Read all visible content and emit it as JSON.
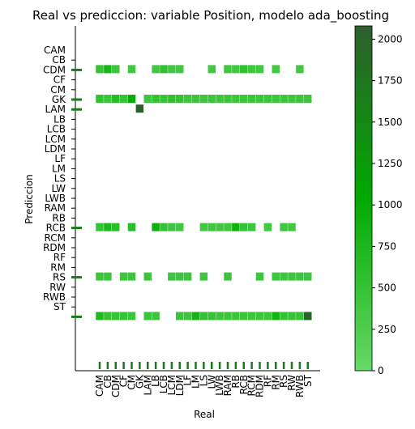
{
  "chart_data": {
    "type": "heatmap",
    "title": "Real vs prediccion: variable Position, modelo ada_boosting",
    "xlabel": "Real",
    "ylabel": "Prediccion",
    "x_categories": [
      "CAM",
      "CB",
      "CDM",
      "CF",
      "CM",
      "GK",
      "LAM",
      "LB",
      "LCB",
      "LCM",
      "LDM",
      "LF",
      "LM",
      "LS",
      "LW",
      "LWB",
      "RAM",
      "RB",
      "RCB",
      "RCM",
      "RDM",
      "RF",
      "RM",
      "RS",
      "RW",
      "RWB",
      "ST"
    ],
    "y_categories": [
      "CAM",
      "CB",
      "CDM",
      "CF",
      "CM",
      "GK",
      "LAM",
      "LB",
      "LCB",
      "LCM",
      "LDM",
      "LF",
      "LM",
      "LS",
      "LW",
      "LWB",
      "RAM",
      "RB",
      "RCB",
      "RCM",
      "RDM",
      "RF",
      "RM",
      "RS",
      "RW",
      "RWB",
      "ST"
    ],
    "highlighted_ticks_y": [
      "CB",
      "CM",
      "GK",
      "RB",
      "RM",
      "ST"
    ],
    "colorbar": {
      "min": 0,
      "max": 2080,
      "ticks": [
        0,
        250,
        500,
        750,
        1000,
        1250,
        1500,
        1750,
        2000
      ],
      "colors": [
        "#66d966",
        "#00aa00",
        "#2e5e2e"
      ],
      "stops": [
        0,
        0.5,
        1
      ]
    },
    "cells": [
      {
        "y": "CB",
        "x": "CAM",
        "v": 500
      },
      {
        "y": "CB",
        "x": "CB",
        "v": 800
      },
      {
        "y": "CB",
        "x": "CDM",
        "v": 420
      },
      {
        "y": "CB",
        "x": "CM",
        "v": 380
      },
      {
        "y": "CB",
        "x": "LB",
        "v": 380
      },
      {
        "y": "CB",
        "x": "LCB",
        "v": 550
      },
      {
        "y": "CB",
        "x": "LCM",
        "v": 400
      },
      {
        "y": "CB",
        "x": "LDM",
        "v": 380
      },
      {
        "y": "CB",
        "x": "LW",
        "v": 380
      },
      {
        "y": "CB",
        "x": "RAM",
        "v": 380
      },
      {
        "y": "CB",
        "x": "RB",
        "v": 380
      },
      {
        "y": "CB",
        "x": "RCB",
        "v": 550
      },
      {
        "y": "CB",
        "x": "RCM",
        "v": 400
      },
      {
        "y": "CB",
        "x": "RDM",
        "v": 380
      },
      {
        "y": "CB",
        "x": "RM",
        "v": 380
      },
      {
        "y": "CB",
        "x": "RWB",
        "v": 380
      },
      {
        "y": "CM",
        "x": "CAM",
        "v": 520
      },
      {
        "y": "CM",
        "x": "CB",
        "v": 450
      },
      {
        "y": "CM",
        "x": "CDM",
        "v": 650
      },
      {
        "y": "CM",
        "x": "CF",
        "v": 480
      },
      {
        "y": "CM",
        "x": "CM",
        "v": 1000
      },
      {
        "y": "CM",
        "x": "LAM",
        "v": 420
      },
      {
        "y": "CM",
        "x": "LB",
        "v": 520
      },
      {
        "y": "CM",
        "x": "LCB",
        "v": 480
      },
      {
        "y": "CM",
        "x": "LCM",
        "v": 560
      },
      {
        "y": "CM",
        "x": "LDM",
        "v": 520
      },
      {
        "y": "CM",
        "x": "LF",
        "v": 420
      },
      {
        "y": "CM",
        "x": "LM",
        "v": 420
      },
      {
        "y": "CM",
        "x": "LS",
        "v": 420
      },
      {
        "y": "CM",
        "x": "LW",
        "v": 420
      },
      {
        "y": "CM",
        "x": "LWB",
        "v": 420
      },
      {
        "y": "CM",
        "x": "RAM",
        "v": 420
      },
      {
        "y": "CM",
        "x": "RB",
        "v": 450
      },
      {
        "y": "CM",
        "x": "RCB",
        "v": 450
      },
      {
        "y": "CM",
        "x": "RCM",
        "v": 450
      },
      {
        "y": "CM",
        "x": "RDM",
        "v": 420
      },
      {
        "y": "CM",
        "x": "RF",
        "v": 420
      },
      {
        "y": "CM",
        "x": "RM",
        "v": 420
      },
      {
        "y": "CM",
        "x": "RS",
        "v": 420
      },
      {
        "y": "CM",
        "x": "RW",
        "v": 420
      },
      {
        "y": "CM",
        "x": "RWB",
        "v": 420
      },
      {
        "y": "CM",
        "x": "ST",
        "v": 420
      },
      {
        "y": "GK",
        "x": "GK",
        "v": 2080
      },
      {
        "y": "RB",
        "x": "CAM",
        "v": 500
      },
      {
        "y": "RB",
        "x": "CB",
        "v": 750
      },
      {
        "y": "RB",
        "x": "CDM",
        "v": 620
      },
      {
        "y": "RB",
        "x": "CM",
        "v": 600
      },
      {
        "y": "RB",
        "x": "LB",
        "v": 900
      },
      {
        "y": "RB",
        "x": "LCB",
        "v": 520
      },
      {
        "y": "RB",
        "x": "LCM",
        "v": 420
      },
      {
        "y": "RB",
        "x": "LDM",
        "v": 380
      },
      {
        "y": "RB",
        "x": "LS",
        "v": 380
      },
      {
        "y": "RB",
        "x": "LW",
        "v": 400
      },
      {
        "y": "RB",
        "x": "LWB",
        "v": 400
      },
      {
        "y": "RB",
        "x": "RAM",
        "v": 400
      },
      {
        "y": "RB",
        "x": "RB",
        "v": 900
      },
      {
        "y": "RB",
        "x": "RCB",
        "v": 480
      },
      {
        "y": "RB",
        "x": "RCM",
        "v": 420
      },
      {
        "y": "RB",
        "x": "RF",
        "v": 380
      },
      {
        "y": "RB",
        "x": "RS",
        "v": 400
      },
      {
        "y": "RB",
        "x": "RW",
        "v": 400
      },
      {
        "y": "RM",
        "x": "CAM",
        "v": 420
      },
      {
        "y": "RM",
        "x": "CB",
        "v": 420
      },
      {
        "y": "RM",
        "x": "CF",
        "v": 420
      },
      {
        "y": "RM",
        "x": "CM",
        "v": 420
      },
      {
        "y": "RM",
        "x": "LAM",
        "v": 420
      },
      {
        "y": "RM",
        "x": "LCM",
        "v": 420
      },
      {
        "y": "RM",
        "x": "LDM",
        "v": 420
      },
      {
        "y": "RM",
        "x": "LF",
        "v": 420
      },
      {
        "y": "RM",
        "x": "LS",
        "v": 420
      },
      {
        "y": "RM",
        "x": "RAM",
        "v": 420
      },
      {
        "y": "RM",
        "x": "RDM",
        "v": 420
      },
      {
        "y": "RM",
        "x": "RM",
        "v": 420
      },
      {
        "y": "RM",
        "x": "RS",
        "v": 420
      },
      {
        "y": "RM",
        "x": "RW",
        "v": 420
      },
      {
        "y": "RM",
        "x": "RWB",
        "v": 420
      },
      {
        "y": "RM",
        "x": "ST",
        "v": 420
      },
      {
        "y": "ST",
        "x": "CAM",
        "v": 700
      },
      {
        "y": "ST",
        "x": "CB",
        "v": 480
      },
      {
        "y": "ST",
        "x": "CDM",
        "v": 480
      },
      {
        "y": "ST",
        "x": "CF",
        "v": 480
      },
      {
        "y": "ST",
        "x": "CM",
        "v": 450
      },
      {
        "y": "ST",
        "x": "LAM",
        "v": 450
      },
      {
        "y": "ST",
        "x": "LB",
        "v": 450
      },
      {
        "y": "ST",
        "x": "LDM",
        "v": 450
      },
      {
        "y": "ST",
        "x": "LF",
        "v": 450
      },
      {
        "y": "ST",
        "x": "LM",
        "v": 820
      },
      {
        "y": "ST",
        "x": "LS",
        "v": 520
      },
      {
        "y": "ST",
        "x": "LW",
        "v": 480
      },
      {
        "y": "ST",
        "x": "LWB",
        "v": 450
      },
      {
        "y": "ST",
        "x": "RAM",
        "v": 450
      },
      {
        "y": "ST",
        "x": "RB",
        "v": 450
      },
      {
        "y": "ST",
        "x": "RCB",
        "v": 450
      },
      {
        "y": "ST",
        "x": "RCM",
        "v": 450
      },
      {
        "y": "ST",
        "x": "RDM",
        "v": 450
      },
      {
        "y": "ST",
        "x": "RF",
        "v": 450
      },
      {
        "y": "ST",
        "x": "RM",
        "v": 850
      },
      {
        "y": "ST",
        "x": "RS",
        "v": 520
      },
      {
        "y": "ST",
        "x": "RW",
        "v": 500
      },
      {
        "y": "ST",
        "x": "RWB",
        "v": 500
      },
      {
        "y": "ST",
        "x": "ST",
        "v": 2000
      }
    ]
  }
}
